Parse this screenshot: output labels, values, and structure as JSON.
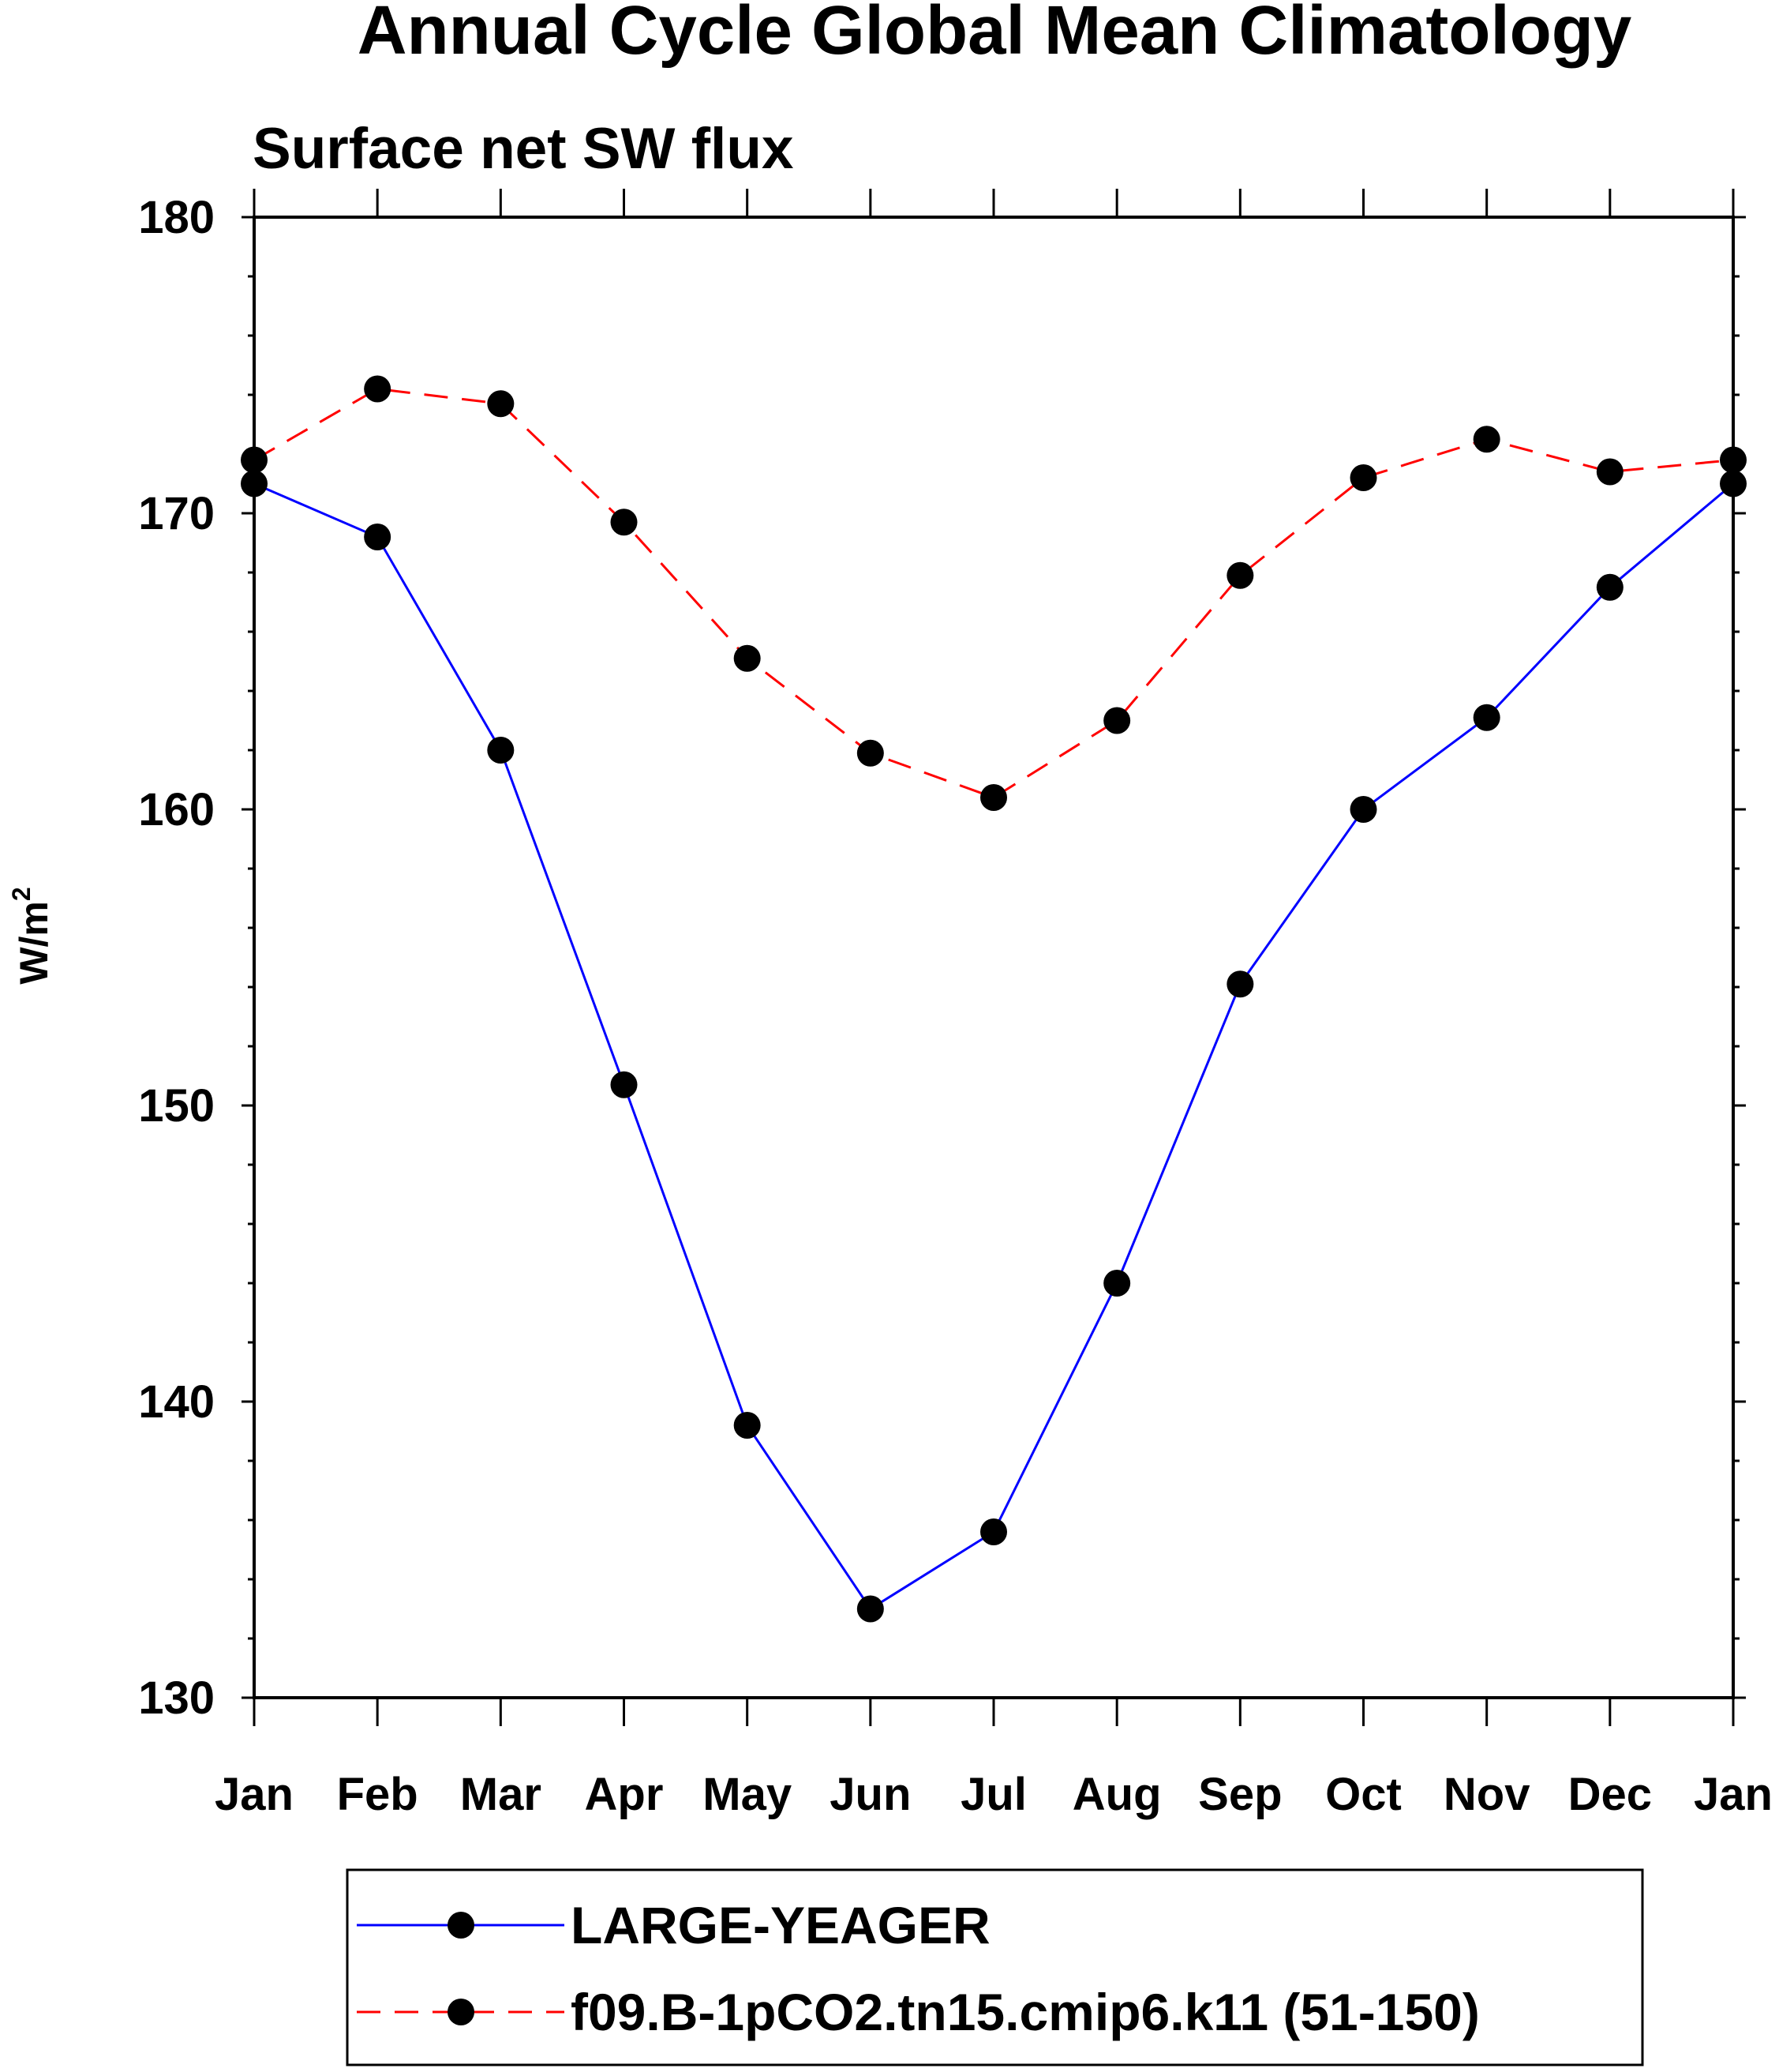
{
  "chart_data": {
    "type": "line",
    "title": "Annual Cycle Global Mean Climatology",
    "subtitle": "Surface net SW flux",
    "ylabel": "W/m",
    "ylabel_sup": "2",
    "xlabel": "",
    "categories": [
      "Jan",
      "Feb",
      "Mar",
      "Apr",
      "May",
      "Jun",
      "Jul",
      "Aug",
      "Sep",
      "Oct",
      "Nov",
      "Dec",
      "Jan"
    ],
    "ylim": [
      130,
      180
    ],
    "yticks": [
      "130",
      "140",
      "150",
      "160",
      "170",
      "180"
    ],
    "grid": false,
    "legend_position": "bottom",
    "series": [
      {
        "name": "LARGE-YEAGER",
        "color": "#0000ff",
        "style": "solid",
        "marker": "circle",
        "values": [
          171.0,
          169.2,
          162.0,
          150.7,
          139.2,
          133.0,
          135.6,
          144.0,
          154.1,
          160.0,
          163.1,
          167.5,
          171.0
        ]
      },
      {
        "name": "f09.B-1pCO2.tn15.cmip6.k11 (51-150)",
        "color": "#ff0000",
        "style": "dashed",
        "marker": "circle",
        "values": [
          171.8,
          174.2,
          173.7,
          169.7,
          165.1,
          161.9,
          160.4,
          163.0,
          167.9,
          171.2,
          172.5,
          171.4,
          171.8
        ]
      }
    ]
  }
}
